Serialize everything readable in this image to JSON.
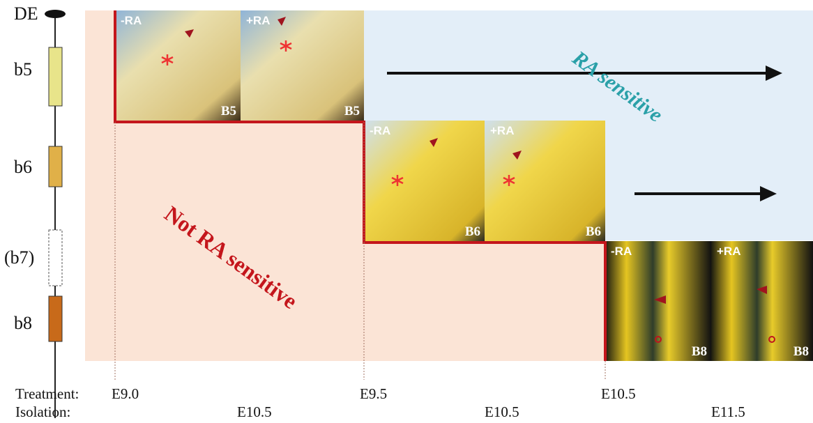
{
  "gene_map": {
    "labels": [
      "DE",
      "b5",
      "b6",
      "(b7)",
      "b8"
    ]
  },
  "panels": [
    {
      "condition": "-RA",
      "stage": "B5"
    },
    {
      "condition": "+RA",
      "stage": "B5"
    },
    {
      "condition": "-RA",
      "stage": "B6"
    },
    {
      "condition": "+RA",
      "stage": "B6"
    },
    {
      "condition": "-RA",
      "stage": "B8"
    },
    {
      "condition": "+RA",
      "stage": "B8"
    }
  ],
  "regions": {
    "sensitive": "RA sensitive",
    "not_sensitive": "Not RA sensitive"
  },
  "timeline": {
    "treatment_label": "Treatment:",
    "treatment": [
      "E9.0",
      "E9.5",
      "E10.5"
    ],
    "isolation_label": "Isolation:",
    "isolation": [
      "E10.5",
      "E10.5",
      "E11.5"
    ]
  }
}
